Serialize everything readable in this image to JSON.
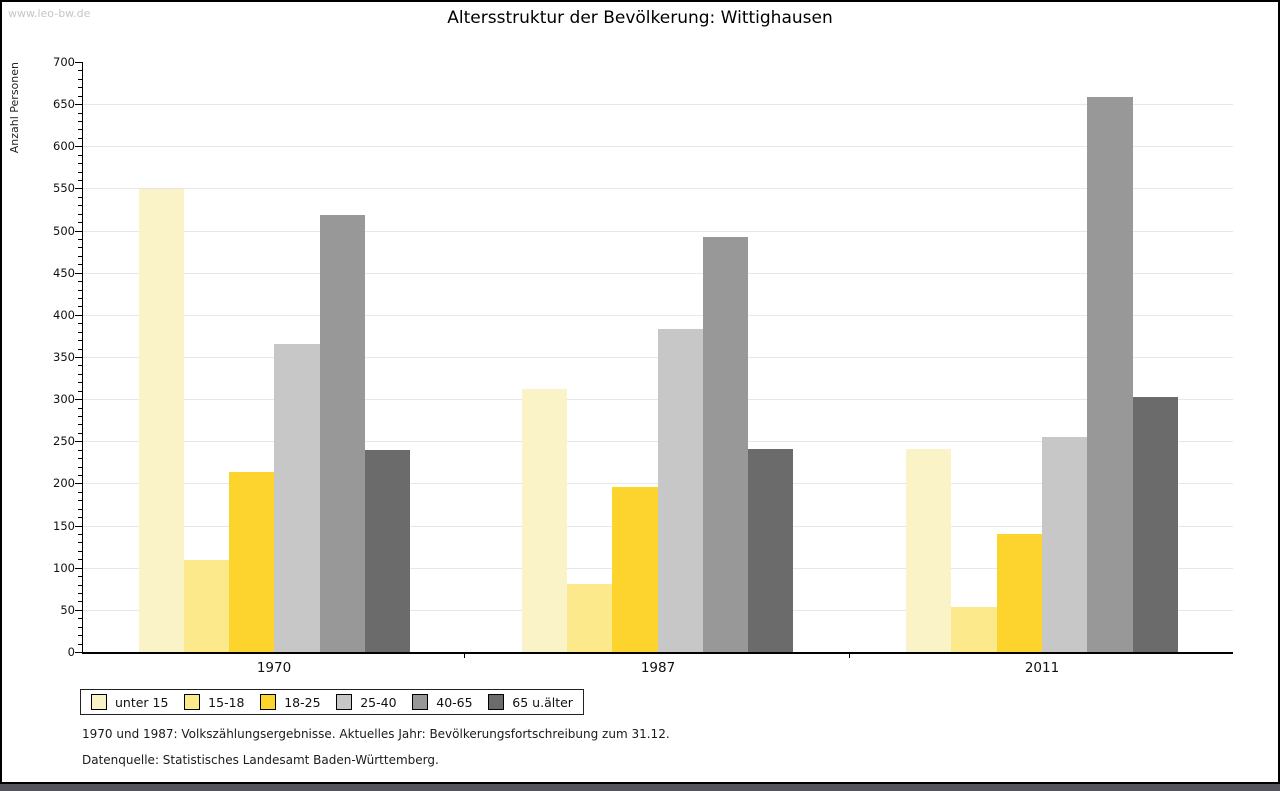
{
  "watermark": "www.leo-bw.de",
  "title": "Altersstruktur der Bevölkerung: Wittighausen",
  "chart_data": {
    "type": "bar",
    "title": "Altersstruktur der Bevölkerung: Wittighausen",
    "xlabel": "",
    "ylabel": "Anzahl Personen",
    "ylim": [
      0,
      700
    ],
    "ytick_step": 50,
    "minor_tick_step": 10,
    "grid": true,
    "legend_position": "bottom",
    "categories": [
      "1970",
      "1987",
      "2011"
    ],
    "series": [
      {
        "name": "unter 15",
        "color": "#FAF3C8",
        "values": [
          549,
          312,
          241
        ]
      },
      {
        "name": "15-18",
        "color": "#FBE98C",
        "values": [
          109,
          81,
          53
        ]
      },
      {
        "name": "18-25",
        "color": "#FCD42D",
        "values": [
          213,
          196,
          140
        ]
      },
      {
        "name": "25-40",
        "color": "#C7C7C7",
        "values": [
          366,
          383,
          255
        ]
      },
      {
        "name": "40-65",
        "color": "#989898",
        "values": [
          519,
          492,
          658
        ]
      },
      {
        "name": "65 u.älter",
        "color": "#6B6B6B",
        "values": [
          240,
          241,
          303
        ]
      }
    ]
  },
  "footnotes": {
    "line1": "1970 und 1987: Volkszählungsergebnisse. Aktuelles Jahr: Bevölkerungsfortschreibung zum 31.12.",
    "line2": "Datenquelle: Statistisches Landesamt Baden-Württemberg."
  },
  "colors": {
    "gridline": "#E7E7E7",
    "axis": "#000000",
    "bottom_band": "#53545C",
    "watermark": "#C6C6C6"
  }
}
